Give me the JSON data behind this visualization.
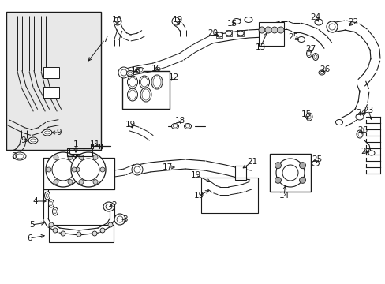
{
  "bg_color": "#ffffff",
  "line_color": "#1a1a1a",
  "gray_box": "#e0e0e0",
  "fig_width": 4.89,
  "fig_height": 3.6,
  "dpi": 100,
  "border_color": "#cccccc"
}
